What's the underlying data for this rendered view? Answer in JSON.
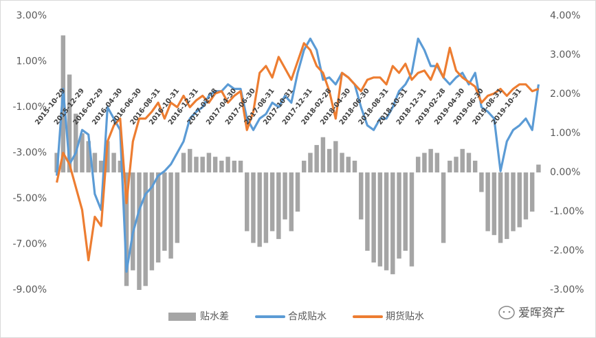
{
  "chart_data": {
    "type": "combo",
    "categories": [
      "2015-10-29",
      null,
      null,
      "2015-12-29",
      null,
      null,
      "2016-02-29",
      null,
      null,
      "2016-04-30",
      null,
      null,
      "2016-06-30",
      null,
      null,
      "2016-08-31",
      null,
      null,
      "2016-10-31",
      null,
      null,
      "2016-12-31",
      null,
      null,
      "2017-02-28",
      null,
      null,
      "2017-04-30",
      null,
      null,
      "2017-06-30",
      null,
      null,
      "2017-08-31",
      null,
      null,
      "2017-10-31",
      null,
      null,
      "2017-12-31",
      null,
      null,
      "2018-02-28",
      null,
      null,
      "2018-04-30",
      null,
      null,
      "2018-06-30",
      null,
      null,
      "2018-08-31",
      null,
      null,
      "2018-10-31",
      null,
      null,
      "2018-12-31",
      null,
      null,
      "2019-02-28",
      null,
      null,
      "2019-04-30",
      null,
      null,
      "2019-06-30",
      null,
      null,
      "2019-08-31",
      null,
      null,
      "2019-10-31",
      null,
      null,
      null,
      null
    ],
    "series": [
      {
        "name": "贴水差",
        "type": "bar",
        "axis": "y2",
        "color": "#a5a5a5",
        "values": [
          0.5,
          3.5,
          2.5,
          1.5,
          1.0,
          0.8,
          0.5,
          0.3,
          0.8,
          0.5,
          0.3,
          -2.9,
          -2.5,
          -3.0,
          -2.9,
          -2.5,
          -2.3,
          -2.0,
          -2.2,
          -1.8,
          0.5,
          0.6,
          0.4,
          0.4,
          0.5,
          0.4,
          0.3,
          0.4,
          0.3,
          0.3,
          -1.5,
          -1.8,
          -1.9,
          -1.8,
          -1.5,
          -1.7,
          -1.2,
          -1.5,
          -1.0,
          0.3,
          0.5,
          0.7,
          0.9,
          0.6,
          0.8,
          0.5,
          0.4,
          0.3,
          -1.2,
          -2.0,
          -2.3,
          -2.4,
          -2.5,
          -2.6,
          -2.2,
          -2.0,
          -2.4,
          0.4,
          0.5,
          0.6,
          0.5,
          -1.8,
          0.3,
          0.4,
          0.6,
          0.5,
          0.3,
          -0.5,
          -1.5,
          -1.6,
          -1.8,
          -1.7,
          -1.5,
          -1.4,
          -1.2,
          -1.0,
          0.2
        ]
      },
      {
        "name": "合成贴水",
        "type": "line",
        "axis": "y",
        "color": "#5b9bd5",
        "values": [
          -4.0,
          -0.2,
          -3.5,
          -3.0,
          -2.0,
          -2.2,
          -4.8,
          -5.5,
          -1.0,
          -1.5,
          -2.0,
          -8.2,
          -6.5,
          -5.5,
          -4.8,
          -4.5,
          -4.0,
          -3.8,
          -3.5,
          -3.0,
          -2.5,
          -1.5,
          -1.2,
          -1.0,
          -0.5,
          -0.3,
          -0.3,
          0.0,
          -0.2,
          -0.2,
          -1.5,
          -2.0,
          -1.5,
          -1.3,
          -0.8,
          -1.0,
          -0.5,
          -0.8,
          0.5,
          1.5,
          2.0,
          1.5,
          0.2,
          0.3,
          0.0,
          0.5,
          0.3,
          0.0,
          -1.0,
          -1.8,
          -2.0,
          -1.5,
          -1.5,
          -1.0,
          -0.3,
          0.0,
          0.5,
          2.0,
          1.5,
          0.8,
          0.8,
          0.3,
          0.0,
          0.3,
          0.5,
          0.0,
          0.5,
          -1.0,
          -1.2,
          -1.5,
          -3.8,
          -2.5,
          -2.0,
          -1.8,
          -1.5,
          -2.0,
          0.0
        ]
      },
      {
        "name": "期货贴水",
        "type": "line",
        "axis": "y",
        "color": "#ed7d31",
        "values": [
          -4.3,
          -3.0,
          -3.5,
          -4.5,
          -5.5,
          -7.7,
          -5.8,
          -6.2,
          -2.5,
          -1.8,
          -1.5,
          -5.2,
          -2.5,
          -1.5,
          -1.5,
          -1.2,
          -0.8,
          -1.5,
          -0.8,
          -1.0,
          -0.5,
          -1.0,
          -0.7,
          -0.5,
          -0.8,
          -0.4,
          -0.3,
          -0.8,
          -0.5,
          -0.3,
          -2.0,
          -1.2,
          0.5,
          0.8,
          0.3,
          1.2,
          0.7,
          0.2,
          1.0,
          1.8,
          1.5,
          0.8,
          0.5,
          -0.3,
          -1.5,
          0.5,
          0.3,
          0.0,
          -0.3,
          0.2,
          0.3,
          0.3,
          0.0,
          0.8,
          0.5,
          0.9,
          0.2,
          0.5,
          0.6,
          0.2,
          0.9,
          0.3,
          1.6,
          0.6,
          0.3,
          0.1,
          -0.1,
          -0.8,
          -0.5,
          -0.4,
          -0.2,
          -0.5,
          -0.2,
          0.0,
          0.0,
          -0.3,
          -0.2
        ]
      }
    ],
    "ylim": [
      -9,
      3
    ],
    "yticks": [
      {
        "value": 3,
        "label": "3.00%"
      },
      {
        "value": 1,
        "label": "1.00%"
      },
      {
        "value": -1,
        "label": "-1.00%"
      },
      {
        "value": -3,
        "label": "-3.00%"
      },
      {
        "value": -5,
        "label": "-5.00%"
      },
      {
        "value": -7,
        "label": "-7.00%"
      },
      {
        "value": -9,
        "label": "-9.00%"
      }
    ],
    "y2lim": [
      -3,
      4
    ],
    "y2ticks": [
      {
        "value": 4,
        "label": "4.00%"
      },
      {
        "value": 3,
        "label": "3.00%"
      },
      {
        "value": 2,
        "label": "2.00%"
      },
      {
        "value": 1,
        "label": "1.00%"
      },
      {
        "value": 0,
        "label": "0.00%"
      },
      {
        "value": -1,
        "label": "-1.00%"
      },
      {
        "value": -2,
        "label": "-2.00%"
      },
      {
        "value": -3,
        "label": "-3.00%"
      }
    ],
    "grid": false,
    "legend": "bottom",
    "watermark": "爱晖资产"
  }
}
